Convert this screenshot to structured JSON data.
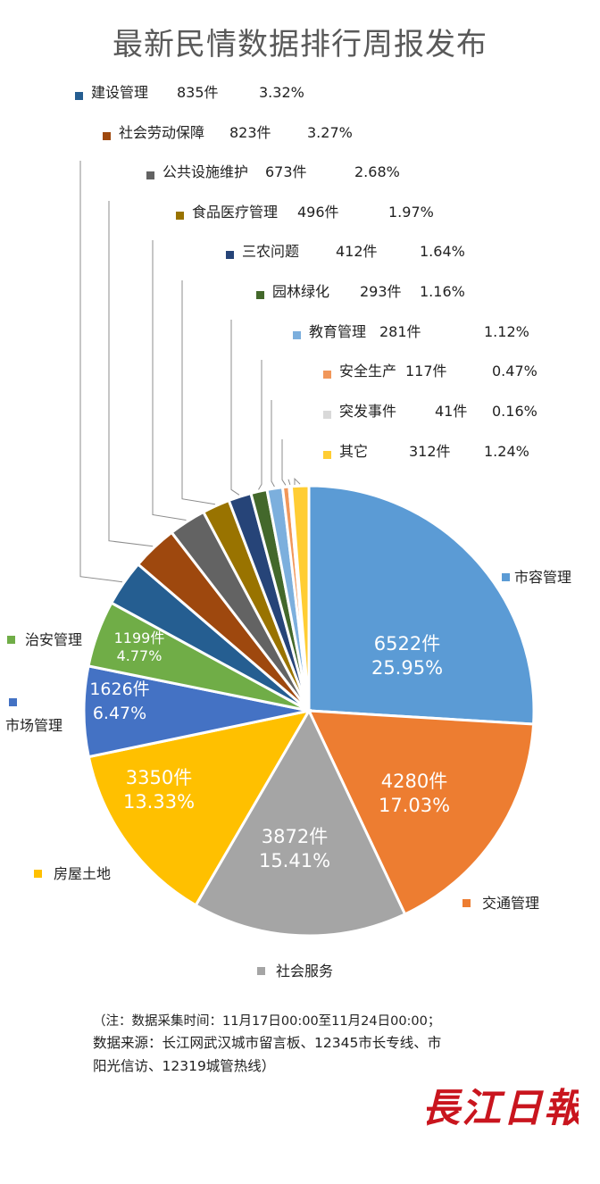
{
  "title": "最新民情数据排行周报发布",
  "chart_data": {
    "type": "pie",
    "title": "最新民情数据排行周报发布",
    "unit": "件",
    "slices": [
      {
        "label": "市容管理",
        "count": 6522,
        "count_text": "6522件",
        "percent": 25.95,
        "percent_text": "25.95%",
        "color": "#5b9bd5"
      },
      {
        "label": "交通管理",
        "count": 4280,
        "count_text": "4280件",
        "percent": 17.03,
        "percent_text": "17.03%",
        "color": "#ed7d31"
      },
      {
        "label": "社会服务",
        "count": 3872,
        "count_text": "3872件",
        "percent": 15.41,
        "percent_text": "15.41%",
        "color": "#a5a5a5"
      },
      {
        "label": "房屋土地",
        "count": 3350,
        "count_text": "3350件",
        "percent": 13.33,
        "percent_text": "13.33%",
        "color": "#ffc000"
      },
      {
        "label": "市场管理",
        "count": 1626,
        "count_text": "1626件",
        "percent": 6.47,
        "percent_text": "6.47%",
        "color": "#4472c4"
      },
      {
        "label": "治安管理",
        "count": 1199,
        "count_text": "1199件",
        "percent": 4.77,
        "percent_text": "4.77%",
        "color": "#70ad47"
      },
      {
        "label": "建设管理",
        "count": 835,
        "count_text": "835件",
        "percent": 3.32,
        "percent_text": "3.32%",
        "color": "#255e91"
      },
      {
        "label": "社会劳动保障",
        "count": 823,
        "count_text": "823件",
        "percent": 3.27,
        "percent_text": "3.27%",
        "color": "#9e480e"
      },
      {
        "label": "公共设施维护",
        "count": 673,
        "count_text": "673件",
        "percent": 2.68,
        "percent_text": "2.68%",
        "color": "#636363"
      },
      {
        "label": "食品医疗管理",
        "count": 496,
        "count_text": "496件",
        "percent": 1.97,
        "percent_text": "1.97%",
        "color": "#997300"
      },
      {
        "label": "三农问题",
        "count": 412,
        "count_text": "412件",
        "percent": 1.64,
        "percent_text": "1.64%",
        "color": "#264478"
      },
      {
        "label": "园林绿化",
        "count": 293,
        "count_text": "293件",
        "percent": 1.16,
        "percent_text": "1.16%",
        "color": "#43682b"
      },
      {
        "label": "教育管理",
        "count": 281,
        "count_text": "281件",
        "percent": 1.12,
        "percent_text": "1.12%",
        "color": "#7cafdd"
      },
      {
        "label": "安全生产",
        "count": 117,
        "count_text": "117件",
        "percent": 0.47,
        "percent_text": "0.47%",
        "color": "#f1975a"
      },
      {
        "label": "突发事件",
        "count": 41,
        "count_text": "41件",
        "percent": 0.16,
        "percent_text": "0.16%",
        "color": "#d9d9d9"
      },
      {
        "label": "其它",
        "count": 312,
        "count_text": "312件",
        "percent": 1.24,
        "percent_text": "1.24%",
        "color": "#ffcd33"
      }
    ]
  },
  "notes": {
    "line1": "（注：数据采集时间：11月17日00:00至11月24日00:00；",
    "line2": "数据来源：长江网武汉城市留言板、12345市长专线、市",
    "line3": "阳光信访、12319城管热线）"
  },
  "logo": {
    "text": "長江日報",
    "color": "#c9151e"
  }
}
